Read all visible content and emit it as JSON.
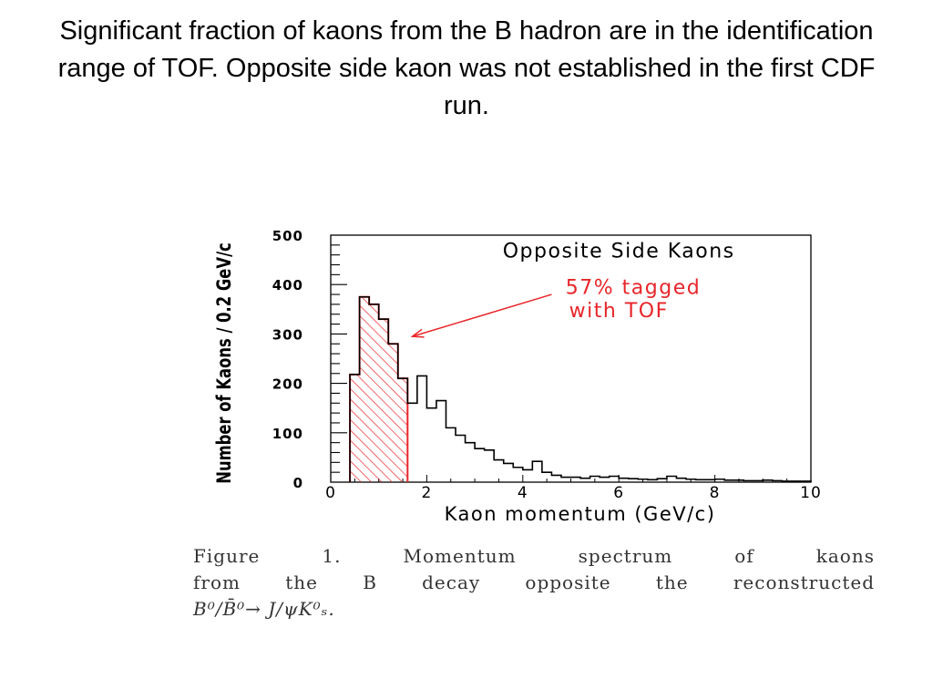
{
  "slide": {
    "title": "Significant fraction of kaons from the B hadron are in the identification range of TOF. Opposite side kaon was not established in the first CDF run."
  },
  "caption": {
    "line1": "Figure  1.    Momentum  spectrum  of  kaons",
    "line2": "from  the  B  decay  opposite  the  reconstructed",
    "line3": "B⁰/B̄⁰→ J/ψK⁰ₛ."
  },
  "colors": {
    "tagged": "#e8262a",
    "axis": "#000000"
  },
  "chart_data": {
    "type": "histogram",
    "title": "Opposite Side Kaons",
    "xlabel": "Kaon momentum (GeV/c)",
    "ylabel": "Number of Kaons / 0.2 GeV/c",
    "xlim": [
      0,
      10
    ],
    "ylim": [
      0,
      500
    ],
    "xticks": [
      "0",
      "2",
      "4",
      "6",
      "8",
      "10"
    ],
    "yticks": [
      "0",
      "100",
      "200",
      "300",
      "400",
      "500"
    ],
    "bin_width": 0.2,
    "bin_start": 0.4,
    "values": [
      218,
      375,
      360,
      330,
      280,
      210,
      160,
      215,
      150,
      165,
      110,
      95,
      80,
      68,
      65,
      45,
      38,
      30,
      25,
      42,
      20,
      14,
      10,
      10,
      8,
      12,
      10,
      12,
      8,
      7,
      6,
      5,
      7,
      12,
      8,
      6,
      5,
      5,
      6,
      4,
      4,
      3,
      3,
      4,
      3,
      2,
      2,
      2
    ],
    "tagged_bins": 6,
    "annotation": {
      "line1": "57% tagged",
      "line2": "with TOF",
      "arrow_target": {
        "x": 1.6,
        "y": 300
      }
    },
    "grid": false,
    "legend": "none"
  }
}
